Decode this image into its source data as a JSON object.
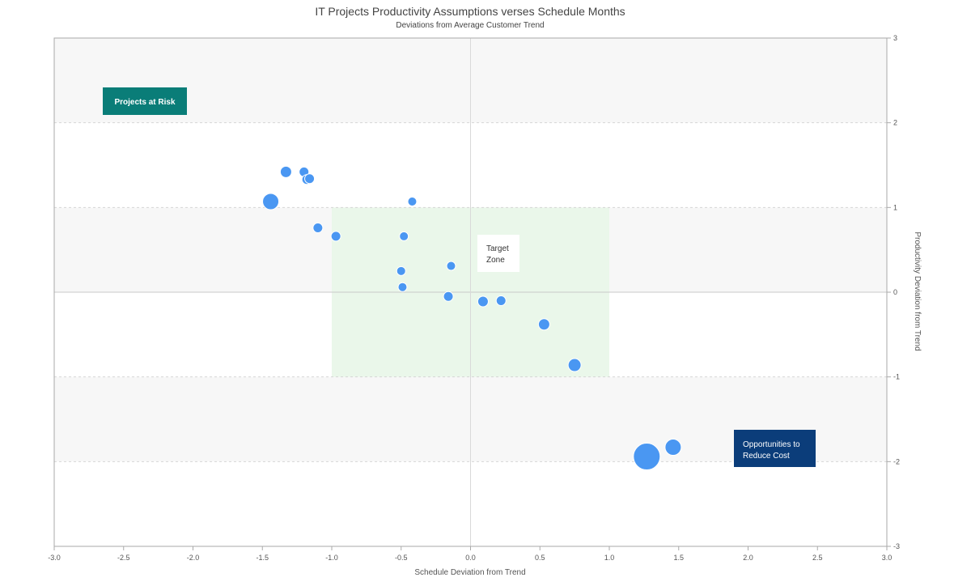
{
  "chart_data": {
    "type": "scatter",
    "title": "IT Projects Productivity Assumptions verses Schedule Months",
    "subtitle": "Deviations from Average Customer Trend",
    "xlabel": "Schedule Deviation from Trend",
    "ylabel": "Productivity Deviation from Trend",
    "xlim": [
      -3.0,
      3.0
    ],
    "ylim": [
      -3,
      3
    ],
    "x_ticks": [
      "-3.0",
      "-2.5",
      "-2.0",
      "-1.5",
      "-1.0",
      "-0.5",
      "0.0",
      "0.5",
      "1.0",
      "1.5",
      "2.0",
      "2.5",
      "3.0"
    ],
    "y_ticks": [
      "3",
      "2",
      "1",
      "0",
      "-1",
      "-2",
      "-3"
    ],
    "y_axis_position": "right",
    "grid": "dashed horizontal lines at each integer y",
    "bands": [
      {
        "y_range": [
          2,
          3
        ],
        "color": "#f7f7f7"
      },
      {
        "y_range": [
          1,
          2
        ],
        "color": "#ffffff"
      },
      {
        "y_range": [
          0,
          1
        ],
        "color": "#f7f7f7"
      },
      {
        "y_range": [
          -1,
          0
        ],
        "color": "#ffffff"
      },
      {
        "y_range": [
          -2,
          -1
        ],
        "color": "#f7f7f7"
      },
      {
        "y_range": [
          -3,
          -2
        ],
        "color": "#ffffff"
      }
    ],
    "target_region": {
      "x_range": [
        -1.0,
        1.0
      ],
      "y_range": [
        -1,
        1
      ],
      "color": "#eaf7ea"
    },
    "point_color": "#4a97f2",
    "points": [
      {
        "x": -1.33,
        "y": 1.42,
        "size": 7
      },
      {
        "x": -1.2,
        "y": 1.42,
        "size": 6
      },
      {
        "x": -1.18,
        "y": 1.33,
        "size": 6
      },
      {
        "x": -1.16,
        "y": 1.34,
        "size": 6
      },
      {
        "x": -1.44,
        "y": 1.07,
        "size": 10
      },
      {
        "x": -0.42,
        "y": 1.07,
        "size": 5.5
      },
      {
        "x": -1.1,
        "y": 0.76,
        "size": 6
      },
      {
        "x": -0.97,
        "y": 0.66,
        "size": 6
      },
      {
        "x": -0.48,
        "y": 0.66,
        "size": 5.5
      },
      {
        "x": -0.14,
        "y": 0.31,
        "size": 5.5
      },
      {
        "x": -0.5,
        "y": 0.25,
        "size": 5.5
      },
      {
        "x": -0.49,
        "y": 0.06,
        "size": 5.5
      },
      {
        "x": -0.16,
        "y": -0.05,
        "size": 6
      },
      {
        "x": 0.09,
        "y": -0.11,
        "size": 6.5
      },
      {
        "x": 0.22,
        "y": -0.1,
        "size": 6
      },
      {
        "x": 0.53,
        "y": -0.38,
        "size": 7
      },
      {
        "x": 0.75,
        "y": -0.86,
        "size": 8
      },
      {
        "x": 1.27,
        "y": -1.94,
        "size": 16.5
      },
      {
        "x": 1.46,
        "y": -1.83,
        "size": 10
      }
    ],
    "annotations": [
      {
        "text": "Projects at Risk",
        "bg": "#0a7d78",
        "color": "#ffffff",
        "bold": true
      },
      {
        "text": "Target Zone",
        "bg": "#ffffff",
        "color": "#333333",
        "bold": false
      },
      {
        "text": "Opportunities to Reduce Cost",
        "bg": "#0b3d7a",
        "color": "#ffffff",
        "bold": false
      }
    ]
  }
}
